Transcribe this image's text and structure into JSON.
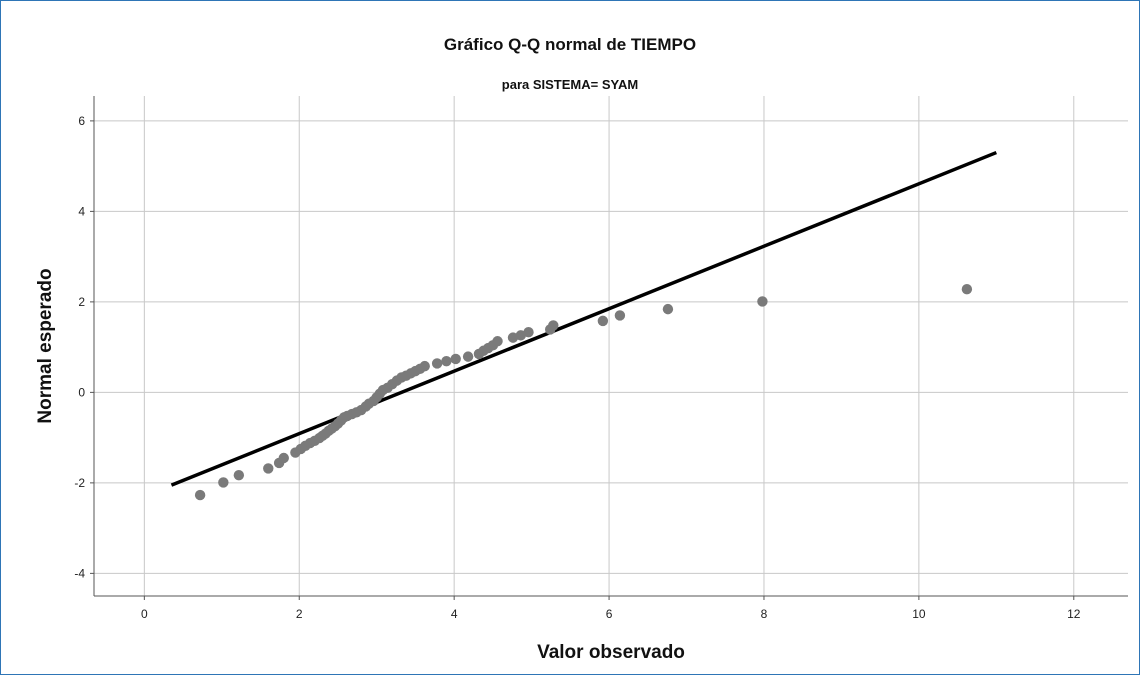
{
  "chart_data": {
    "type": "scatter",
    "title": "Gráfico Q-Q normal de TIEMPO",
    "subtitle": "para SISTEMA= SYAM",
    "xlabel": "Valor observado",
    "ylabel": "Normal esperado",
    "xlim": [
      -0.65,
      12.7
    ],
    "ylim": [
      -4.5,
      6.55
    ],
    "xticks": [
      0,
      2,
      4,
      6,
      8,
      10,
      12
    ],
    "yticks": [
      -4,
      -2,
      0,
      2,
      4,
      6
    ],
    "xtick_labels": [
      "0",
      "2",
      "4",
      "6",
      "8",
      "10",
      "12"
    ],
    "ytick_labels": [
      "-4",
      "-2",
      "0",
      "2",
      "4",
      "6"
    ],
    "grid": true,
    "reference_line": {
      "x": [
        0.35,
        11.0
      ],
      "y": [
        -2.05,
        5.3
      ]
    },
    "colors": {
      "points": "#7a7a7a",
      "line": "#000000",
      "grid": "#c8c8c8",
      "axis": "#555555"
    },
    "points": [
      [
        0.72,
        -2.27
      ],
      [
        1.02,
        -1.99
      ],
      [
        1.22,
        -1.83
      ],
      [
        1.6,
        -1.68
      ],
      [
        1.74,
        -1.56
      ],
      [
        1.8,
        -1.45
      ],
      [
        1.95,
        -1.33
      ],
      [
        2.02,
        -1.25
      ],
      [
        2.08,
        -1.18
      ],
      [
        2.14,
        -1.12
      ],
      [
        2.2,
        -1.07
      ],
      [
        2.26,
        -1.01
      ],
      [
        2.3,
        -0.96
      ],
      [
        2.34,
        -0.91
      ],
      [
        2.38,
        -0.85
      ],
      [
        2.42,
        -0.8
      ],
      [
        2.46,
        -0.75
      ],
      [
        2.5,
        -0.69
      ],
      [
        2.54,
        -0.62
      ],
      [
        2.58,
        -0.55
      ],
      [
        2.62,
        -0.52
      ],
      [
        2.68,
        -0.48
      ],
      [
        2.74,
        -0.44
      ],
      [
        2.8,
        -0.39
      ],
      [
        2.86,
        -0.31
      ],
      [
        2.9,
        -0.25
      ],
      [
        2.96,
        -0.19
      ],
      [
        3.0,
        -0.11
      ],
      [
        3.04,
        -0.03
      ],
      [
        3.08,
        0.05
      ],
      [
        3.14,
        0.1
      ],
      [
        3.2,
        0.18
      ],
      [
        3.26,
        0.26
      ],
      [
        3.32,
        0.33
      ],
      [
        3.38,
        0.37
      ],
      [
        3.44,
        0.42
      ],
      [
        3.5,
        0.47
      ],
      [
        3.56,
        0.52
      ],
      [
        3.62,
        0.58
      ],
      [
        3.78,
        0.64
      ],
      [
        3.9,
        0.69
      ],
      [
        4.02,
        0.74
      ],
      [
        4.18,
        0.79
      ],
      [
        4.32,
        0.85
      ],
      [
        4.38,
        0.92
      ],
      [
        4.44,
        0.98
      ],
      [
        4.5,
        1.04
      ],
      [
        4.56,
        1.13
      ],
      [
        4.76,
        1.21
      ],
      [
        4.86,
        1.26
      ],
      [
        4.96,
        1.33
      ],
      [
        5.24,
        1.39
      ],
      [
        5.28,
        1.48
      ],
      [
        5.92,
        1.58
      ],
      [
        6.14,
        1.7
      ],
      [
        6.76,
        1.84
      ],
      [
        7.98,
        2.01
      ],
      [
        10.62,
        2.28
      ]
    ]
  }
}
